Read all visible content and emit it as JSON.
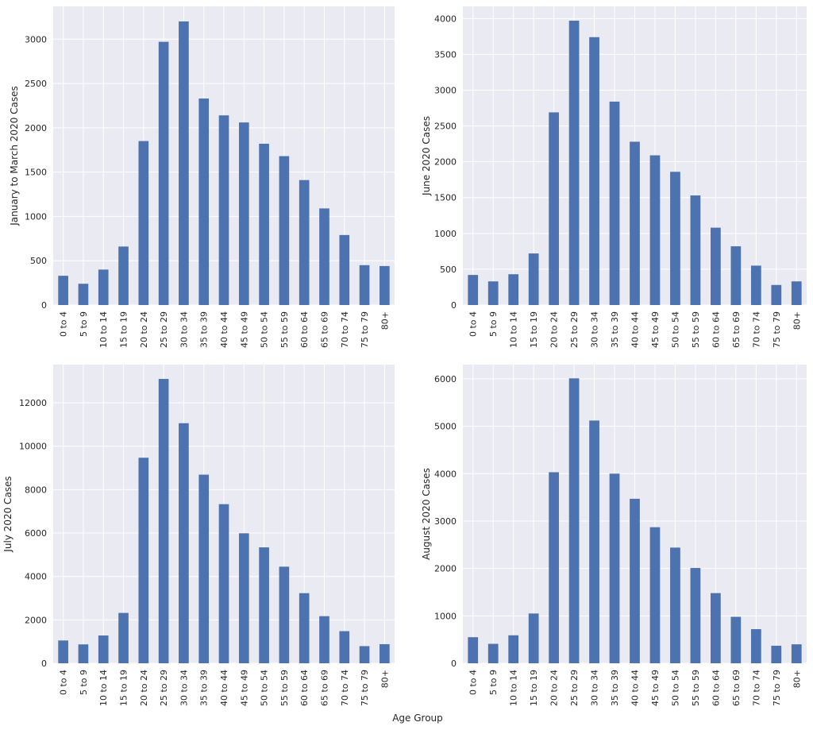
{
  "figure": {
    "xlabel": "Age Group",
    "bar_color": "#4c72b0",
    "panel_background": "#eaeaf2",
    "grid_color": "#ffffff"
  },
  "chart_data": [
    {
      "type": "bar",
      "ylabel": "January to March 2020 Cases",
      "categories": [
        "0 to 4",
        "5 to 9",
        "10 to 14",
        "15 to 19",
        "20 to 24",
        "25 to 29",
        "30 to 34",
        "35 to 39",
        "40 to 44",
        "45 to 49",
        "50 to 54",
        "55 to 59",
        "60 to 64",
        "65 to 69",
        "70 to 74",
        "75 to 79",
        "80+"
      ],
      "values": [
        330,
        240,
        400,
        660,
        1850,
        2970,
        3200,
        2330,
        2140,
        2060,
        1820,
        1680,
        1410,
        1090,
        790,
        450,
        440
      ],
      "ylim": [
        0,
        3370
      ],
      "yticks": [
        0,
        500,
        1000,
        1500,
        2000,
        2500,
        3000
      ],
      "grid": true
    },
    {
      "type": "bar",
      "ylabel": "June 2020 Cases",
      "categories": [
        "0 to 4",
        "5 to 9",
        "10 to 14",
        "15 to 19",
        "20 to 24",
        "25 to 29",
        "30 to 34",
        "35 to 39",
        "40 to 44",
        "45 to 49",
        "50 to 54",
        "55 to 59",
        "60 to 64",
        "65 to 69",
        "70 to 74",
        "75 to 79",
        "80+"
      ],
      "values": [
        420,
        330,
        430,
        720,
        2690,
        3970,
        3740,
        2840,
        2280,
        2090,
        1860,
        1530,
        1080,
        820,
        550,
        280,
        330
      ],
      "ylim": [
        0,
        4170
      ],
      "yticks": [
        0,
        500,
        1000,
        1500,
        2000,
        2500,
        3000,
        3500,
        4000
      ],
      "grid": true
    },
    {
      "type": "bar",
      "ylabel": "July 2020 Cases",
      "categories": [
        "0 to 4",
        "5 to 9",
        "10 to 14",
        "15 to 19",
        "20 to 24",
        "25 to 29",
        "30 to 34",
        "35 to 39",
        "40 to 44",
        "45 to 49",
        "50 to 54",
        "55 to 59",
        "60 to 64",
        "65 to 69",
        "70 to 74",
        "75 to 79",
        "80+"
      ],
      "values": [
        1050,
        870,
        1280,
        2320,
        9470,
        13100,
        11060,
        8690,
        7330,
        5990,
        5340,
        4450,
        3230,
        2170,
        1480,
        790,
        880
      ],
      "ylim": [
        0,
        13760
      ],
      "yticks": [
        0,
        2000,
        4000,
        6000,
        8000,
        10000,
        12000
      ],
      "grid": true
    },
    {
      "type": "bar",
      "ylabel": "August 2020 Cases",
      "categories": [
        "0 to 4",
        "5 to 9",
        "10 to 14",
        "15 to 19",
        "20 to 24",
        "25 to 29",
        "30 to 34",
        "35 to 39",
        "40 to 44",
        "45 to 49",
        "50 to 54",
        "55 to 59",
        "60 to 64",
        "65 to 69",
        "70 to 74",
        "75 to 79",
        "80+"
      ],
      "values": [
        550,
        410,
        590,
        1050,
        4030,
        6010,
        5120,
        4000,
        3470,
        2870,
        2440,
        2010,
        1480,
        980,
        720,
        370,
        400
      ],
      "ylim": [
        0,
        6300
      ],
      "yticks": [
        0,
        1000,
        2000,
        3000,
        4000,
        5000,
        6000
      ],
      "grid": true
    }
  ]
}
